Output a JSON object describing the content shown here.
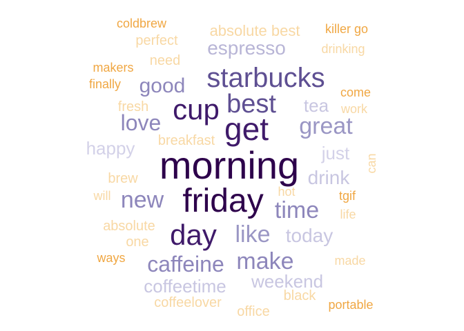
{
  "words": [
    {
      "text": "morning",
      "color": "#2d004b"
    },
    {
      "text": "friday",
      "color": "#2d004b"
    },
    {
      "text": "get",
      "color": "#3f1a6a"
    },
    {
      "text": "cup",
      "color": "#3f1a6a"
    },
    {
      "text": "day",
      "color": "#3f1a6a"
    },
    {
      "text": "starbucks",
      "color": "#5e4f92"
    },
    {
      "text": "best",
      "color": "#5e4f92"
    },
    {
      "text": "time",
      "color": "#8d86bb"
    },
    {
      "text": "great",
      "color": "#9a96c4"
    },
    {
      "text": "new",
      "color": "#8d86bb"
    },
    {
      "text": "love",
      "color": "#8d86bb"
    },
    {
      "text": "good",
      "color": "#8d86bb"
    },
    {
      "text": "like",
      "color": "#9a96c4"
    },
    {
      "text": "make",
      "color": "#8d86bb"
    },
    {
      "text": "caffeine",
      "color": "#8d86bb"
    },
    {
      "text": "espresso",
      "color": "#b8b5d6"
    },
    {
      "text": "today",
      "color": "#c8c6e1"
    },
    {
      "text": "coffeetime",
      "color": "#c8c6e1"
    },
    {
      "text": "weekend",
      "color": "#c8c6e1"
    },
    {
      "text": "drink",
      "color": "#c8c6e1"
    },
    {
      "text": "tea",
      "color": "#c8c6e1"
    },
    {
      "text": "happy",
      "color": "#d3d1e8"
    },
    {
      "text": "just",
      "color": "#d3d1e8"
    },
    {
      "text": "absolute best",
      "color": "#f8d8a4"
    },
    {
      "text": "breakfast",
      "color": "#f8d8a4"
    },
    {
      "text": "perfect",
      "color": "#f8d8a4"
    },
    {
      "text": "need",
      "color": "#f8d8a4"
    },
    {
      "text": "fresh",
      "color": "#f8d8a4"
    },
    {
      "text": "brew",
      "color": "#f8d8a4"
    },
    {
      "text": "absolute",
      "color": "#f8d8a4"
    },
    {
      "text": "one",
      "color": "#f8d8a4"
    },
    {
      "text": "coffeelover",
      "color": "#f8d8a4"
    },
    {
      "text": "office",
      "color": "#f8d8a4"
    },
    {
      "text": "black",
      "color": "#f8d8a4"
    },
    {
      "text": "drinking",
      "color": "#f8d8a4"
    },
    {
      "text": "work",
      "color": "#f8d8a4"
    },
    {
      "text": "can",
      "color": "#f8d8a4"
    },
    {
      "text": "hot",
      "color": "#f8d8a4"
    },
    {
      "text": "life",
      "color": "#f8d8a4"
    },
    {
      "text": "made",
      "color": "#f8d8a4"
    },
    {
      "text": "will",
      "color": "#f8d8a4"
    },
    {
      "text": "coldbrew",
      "color": "#f0a743"
    },
    {
      "text": "killer go",
      "color": "#f0a743"
    },
    {
      "text": "makers",
      "color": "#f0a743"
    },
    {
      "text": "finally",
      "color": "#f0a743"
    },
    {
      "text": "come",
      "color": "#f0a743"
    },
    {
      "text": "tgif",
      "color": "#f0a743"
    },
    {
      "text": "ways",
      "color": "#f0a743"
    },
    {
      "text": "portable",
      "color": "#f0a743"
    }
  ]
}
